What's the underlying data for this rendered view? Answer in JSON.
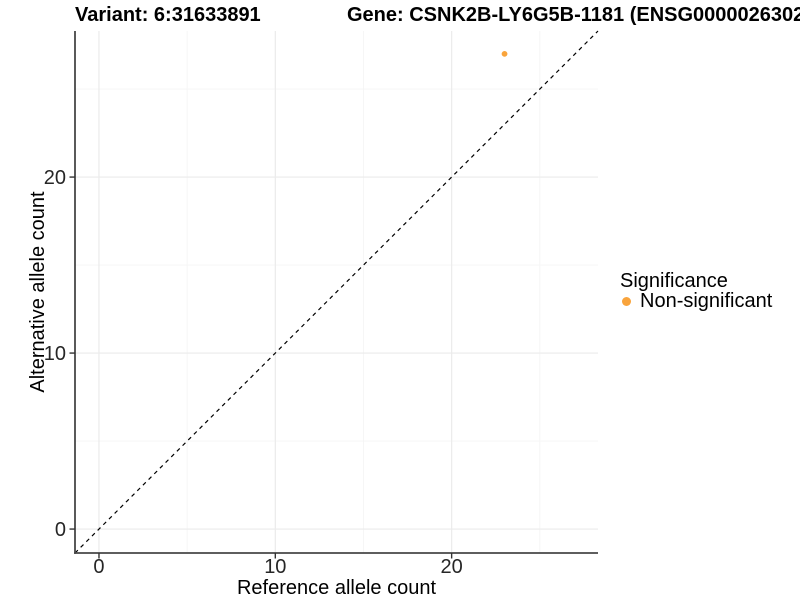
{
  "chart_data": {
    "type": "scatter",
    "title_left": "Variant: 6:31633891",
    "title_right": "Gene: CSNK2B-LY6G5B-1181 (ENSG0000026302",
    "xlabel": "Reference allele count",
    "ylabel": "Alternative allele count",
    "x_ticks": [
      0,
      10,
      20
    ],
    "y_ticks": [
      0,
      10,
      20
    ],
    "x_minor_ticks": [
      5,
      15,
      25
    ],
    "y_minor_ticks": [
      5,
      15,
      25
    ],
    "xlim": [
      -1.36,
      28.3
    ],
    "ylim": [
      -1.36,
      28.3
    ],
    "grid": "major+minor",
    "points": [
      {
        "x": 23,
        "y": 27,
        "series": "Non-significant"
      }
    ],
    "reference_line": {
      "slope": 1,
      "intercept": 0,
      "style": "dashed"
    },
    "legend": {
      "title": "Significance",
      "position": "right",
      "entries": [
        {
          "label": "Non-significant",
          "color": "#F9A43C"
        }
      ]
    },
    "colors": {
      "point": "#F9A43C",
      "grid_major": "#EBEBEB",
      "grid_minor": "#F5F5F5",
      "axis_line": "#474747",
      "tick_mark": "#333333",
      "tick_text": "#262626",
      "dashed_line": "#000000",
      "background": "#FFFFFF"
    }
  }
}
